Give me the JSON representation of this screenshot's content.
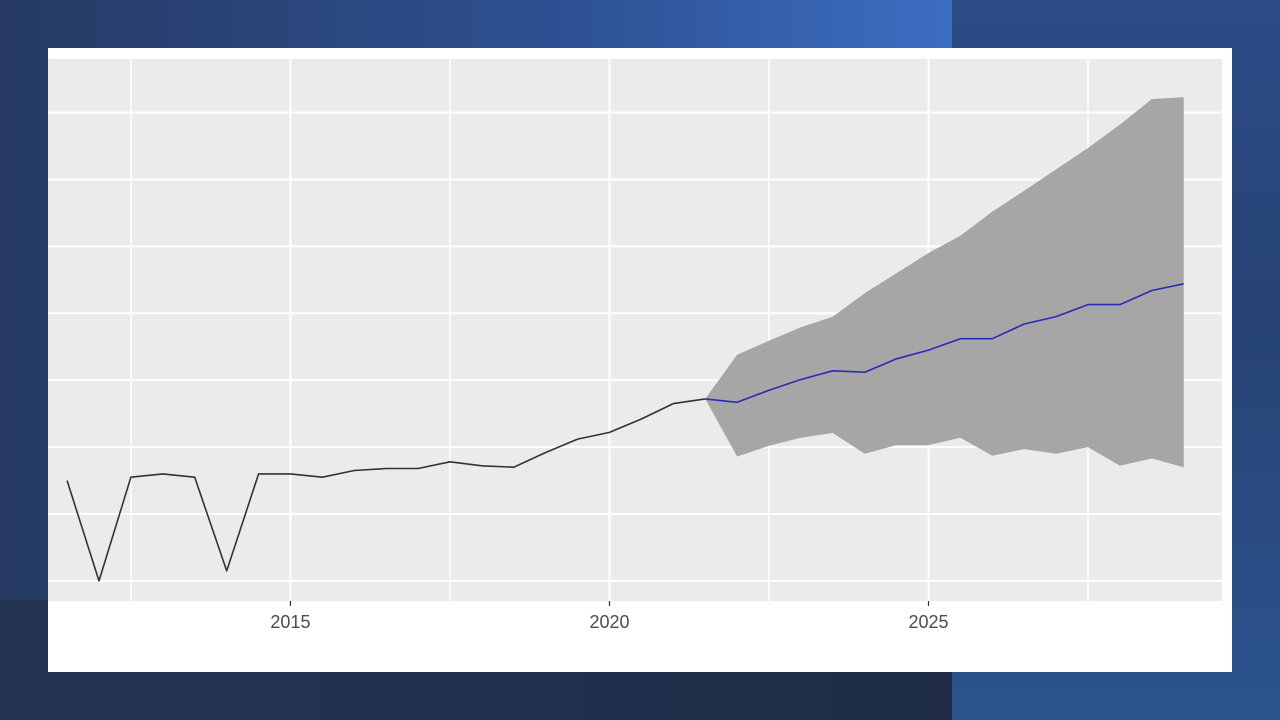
{
  "chart_data": {
    "type": "line",
    "title": "",
    "xlabel": "",
    "ylabel": "",
    "xlim": [
      2011.2,
      2029.6
    ],
    "ylim": [
      0.3,
      8.4
    ],
    "x_ticks": [
      2015,
      2020,
      2025
    ],
    "x_tick_labels": [
      "2015",
      "2020",
      "2025"
    ],
    "x_minor_ticks": [
      2012.5,
      2017.5,
      2022.5,
      2027.5
    ],
    "y_gridlines": [
      0.6,
      1.6,
      2.6,
      3.6,
      4.6,
      5.6,
      6.6,
      7.6
    ],
    "grid": true,
    "series": [
      {
        "role": "history",
        "color": "#333333",
        "x": [
          2011.5,
          2012.0,
          2012.5,
          2013.0,
          2013.5,
          2014.0,
          2014.5,
          2015.0,
          2015.5,
          2016.0,
          2016.5,
          2017.0,
          2017.5,
          2018.0,
          2018.5,
          2019.0,
          2019.5,
          2020.0,
          2020.5,
          2021.0,
          2021.5
        ],
        "y": [
          2.1,
          0.6,
          2.15,
          2.2,
          2.15,
          0.75,
          2.2,
          2.2,
          2.15,
          2.25,
          2.28,
          2.28,
          2.38,
          2.32,
          2.3,
          2.52,
          2.72,
          2.82,
          3.02,
          3.25,
          3.32
        ]
      },
      {
        "role": "forecast",
        "color": "#2b2bb5",
        "x": [
          2021.5,
          2022.0,
          2022.5,
          2023.0,
          2023.5,
          2024.0,
          2024.5,
          2025.0,
          2025.5,
          2026.0,
          2026.5,
          2027.0,
          2027.5,
          2028.0,
          2028.5,
          2029.0
        ],
        "y": [
          3.32,
          3.27,
          3.45,
          3.61,
          3.74,
          3.72,
          3.92,
          4.05,
          4.22,
          4.22,
          4.44,
          4.55,
          4.73,
          4.73,
          4.94,
          5.04
        ],
        "lower": [
          3.32,
          2.46,
          2.62,
          2.74,
          2.81,
          2.5,
          2.63,
          2.63,
          2.74,
          2.47,
          2.57,
          2.5,
          2.6,
          2.32,
          2.43,
          2.3
        ],
        "upper": [
          3.32,
          3.98,
          4.19,
          4.39,
          4.55,
          4.9,
          5.2,
          5.5,
          5.76,
          6.12,
          6.43,
          6.75,
          7.07,
          7.42,
          7.8,
          7.83
        ]
      }
    ]
  },
  "colors": {
    "panel": "#ebebeb",
    "grid": "#ffffff",
    "band": "#a6a6a6",
    "history": "#333333",
    "forecast": "#2b2bb5"
  }
}
